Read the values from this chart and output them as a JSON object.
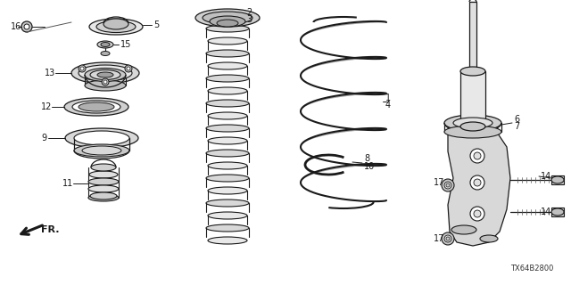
{
  "background_color": "#ffffff",
  "diagram_code": "TX64B2800",
  "figsize": [
    6.4,
    3.2
  ],
  "dpi": 100,
  "black": "#1a1a1a",
  "gray": "#888888",
  "lgray": "#cccccc",
  "dgray": "#555555"
}
